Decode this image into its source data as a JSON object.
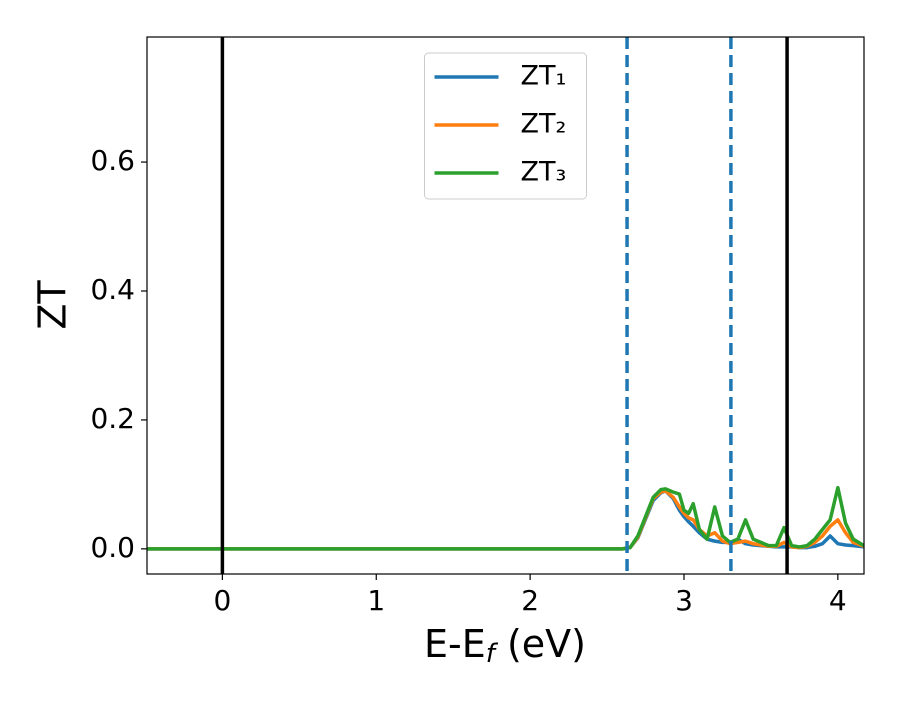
{
  "chart_data": {
    "type": "line",
    "ylabel": "ZT",
    "xlabel": [
      "E-E",
      "f",
      " (eV)"
    ],
    "x": [
      -0.49,
      0,
      1,
      2,
      2.6,
      2.65,
      2.7,
      2.75,
      2.8,
      2.85,
      2.88,
      2.93,
      2.97,
      3.0,
      3.03,
      3.06,
      3.1,
      3.15,
      3.2,
      3.25,
      3.3,
      3.35,
      3.4,
      3.45,
      3.5,
      3.55,
      3.6,
      3.65,
      3.7,
      3.75,
      3.8,
      3.85,
      3.9,
      3.95,
      4.0,
      4.05,
      4.1,
      4.17
    ],
    "series": [
      {
        "name": "ZT₁",
        "color": "#1f77b4",
        "values": [
          0,
          0,
          0,
          0,
          0,
          0.002,
          0.017,
          0.046,
          0.075,
          0.087,
          0.09,
          0.078,
          0.06,
          0.05,
          0.042,
          0.035,
          0.025,
          0.015,
          0.012,
          0.01,
          0.01,
          0.015,
          0.008,
          0.006,
          0.005,
          0.004,
          0.003,
          0.003,
          0.003,
          0.002,
          0.002,
          0.004,
          0.008,
          0.02,
          0.008,
          0.006,
          0.005,
          0.003
        ]
      },
      {
        "name": "ZT₂",
        "color": "#ff7f0e",
        "values": [
          0,
          0,
          0,
          0,
          0,
          0.002,
          0.018,
          0.048,
          0.078,
          0.088,
          0.09,
          0.08,
          0.065,
          0.055,
          0.048,
          0.045,
          0.03,
          0.02,
          0.025,
          0.012,
          0.008,
          0.01,
          0.012,
          0.008,
          0.006,
          0.004,
          0.004,
          0.01,
          0.003,
          0.002,
          0.004,
          0.01,
          0.02,
          0.035,
          0.045,
          0.025,
          0.01,
          0.004
        ]
      },
      {
        "name": "ZT₃",
        "color": "#2ca02c",
        "values": [
          0,
          0,
          0,
          0,
          0,
          0.002,
          0.02,
          0.05,
          0.08,
          0.092,
          0.093,
          0.088,
          0.085,
          0.06,
          0.055,
          0.07,
          0.03,
          0.015,
          0.065,
          0.02,
          0.01,
          0.015,
          0.045,
          0.015,
          0.01,
          0.005,
          0.005,
          0.033,
          0.005,
          0.003,
          0.005,
          0.015,
          0.03,
          0.045,
          0.095,
          0.04,
          0.015,
          0.005
        ]
      }
    ],
    "vlines": [
      {
        "x": 0,
        "color": "#000000",
        "dashed": false
      },
      {
        "x": 3.67,
        "color": "#000000",
        "dashed": false
      },
      {
        "x": 2.63,
        "color": "#1f77b4",
        "dashed": true
      },
      {
        "x": 3.305,
        "color": "#1f77b4",
        "dashed": true
      }
    ],
    "xlim": [
      -0.49,
      4.17
    ],
    "ylim": [
      -0.039,
      0.794
    ],
    "xticks": [
      0,
      1,
      2,
      3,
      4
    ],
    "yticks": [
      {
        "value": 0,
        "label": "0.0"
      },
      0.2,
      0.4,
      0.6
    ],
    "legend": "upper center"
  }
}
